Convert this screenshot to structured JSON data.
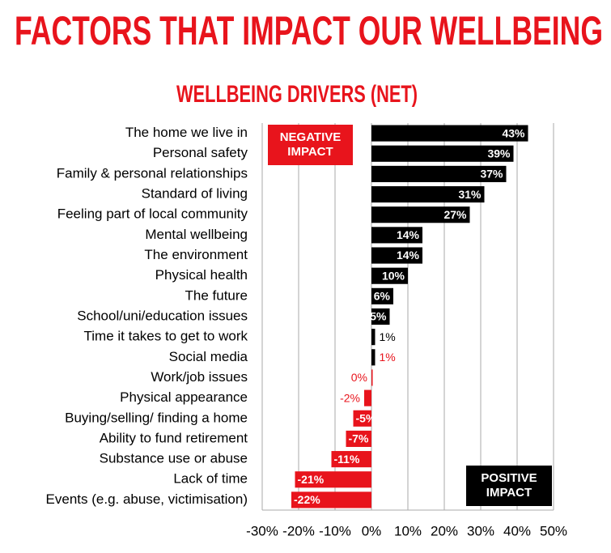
{
  "chart_data": {
    "type": "hbar",
    "title": "FACTORS THAT IMPACT OUR WELLBEING",
    "subtitle": "WELLBEING DRIVERS (NET)",
    "categories": [
      "The home we live in",
      "Personal safety",
      "Family & personal relationships",
      "Standard of living",
      "Feeling part of local community",
      "Mental wellbeing",
      "The environment",
      "Physical health",
      "The future",
      "School/uni/education issues",
      "Time it takes to get to work",
      "Social media",
      "Work/job issues",
      "Physical appearance",
      "Buying/selling/ finding a home",
      "Ability to fund retirement",
      "Substance use or abuse",
      "Lack of time",
      "Events (e.g. abuse, victimisation)"
    ],
    "values": [
      43,
      39,
      37,
      31,
      27,
      14,
      14,
      10,
      6,
      5,
      1,
      1,
      0,
      -2,
      -5,
      -7,
      -11,
      -21,
      -22
    ],
    "value_labels": [
      "43%",
      "39%",
      "37%",
      "31%",
      "27%",
      "14%",
      "14%",
      "10%",
      "6%",
      "5%",
      "1%",
      "1%",
      "0%",
      "-2%",
      "-5%",
      "-7%",
      "-11%",
      "-21%",
      "-22%"
    ],
    "colors": [
      "#000000",
      "#000000",
      "#000000",
      "#000000",
      "#000000",
      "#000000",
      "#000000",
      "#000000",
      "#000000",
      "#000000",
      "#000000",
      "#000000",
      "#e8141c",
      "#e8141c",
      "#e8141c",
      "#e8141c",
      "#e8141c",
      "#e8141c",
      "#e8141c"
    ],
    "value_label_colors": [
      "#000000",
      "#000000",
      "#000000",
      "#000000",
      "#000000",
      "#000000",
      "#000000",
      "#000000",
      "#000000",
      "#000000",
      "#000000",
      "#e8141c",
      "#e8141c",
      "#e8141c",
      "#e8141c",
      "#e8141c",
      "#e8141c",
      "#e8141c",
      "#e8141c"
    ],
    "xlim": [
      -30,
      50
    ],
    "xticks": [
      {
        "value": -30,
        "label": "-30%"
      },
      {
        "value": -20,
        "label": "-20%"
      },
      {
        "value": -10,
        "label": "-10%"
      },
      {
        "value": 0,
        "label": "0%"
      },
      {
        "value": 10,
        "label": "10%"
      },
      {
        "value": 20,
        "label": "20%"
      },
      {
        "value": 30,
        "label": "30%"
      },
      {
        "value": 40,
        "label": "40%"
      },
      {
        "value": 50,
        "label": "50%"
      }
    ],
    "grid": true,
    "annotations": [
      {
        "text": "NEGATIVE IMPACT",
        "color": "#e8141c"
      },
      {
        "text": "POSITIVE IMPACT",
        "color": "#000000"
      }
    ]
  }
}
